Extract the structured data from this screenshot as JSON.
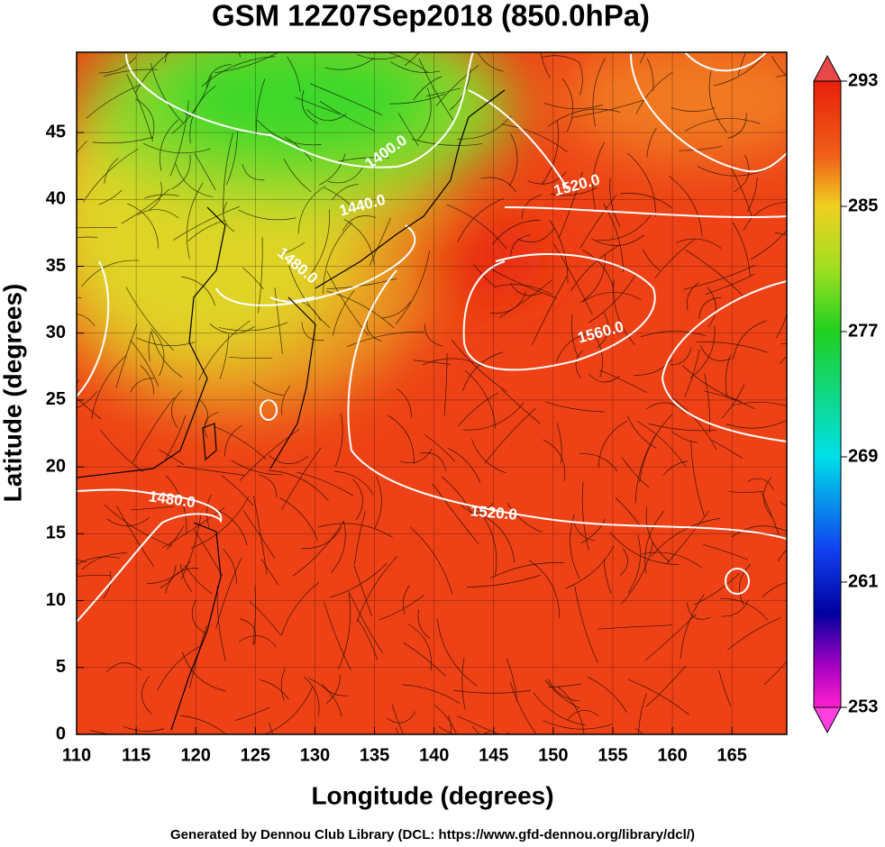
{
  "chart_data": {
    "type": "map",
    "title": "GSM 12Z07Sep2018 (850.0hPa)",
    "x_label": "Longitude (degrees)",
    "y_label": "Latitude  (degrees)",
    "footer": "Generated by Dennou Club Library (DCL: https://www.gfd-dennou.org/library/dcl/)",
    "xlim": [
      110,
      169.6
    ],
    "ylim": [
      0,
      51
    ],
    "xticks": [
      110,
      115,
      120,
      125,
      130,
      135,
      140,
      145,
      150,
      155,
      160,
      165
    ],
    "yticks": [
      0,
      5,
      10,
      15,
      20,
      25,
      30,
      35,
      40,
      45
    ],
    "grid": true,
    "contour_labels": [
      "1400.0",
      "1440.0",
      "1480.0",
      "1520.0",
      "1560.0",
      "1480.0",
      "1520.0"
    ],
    "colorbar": {
      "lim": [
        253,
        293
      ],
      "ticks": [
        253,
        261,
        269,
        277,
        285,
        293
      ]
    }
  }
}
